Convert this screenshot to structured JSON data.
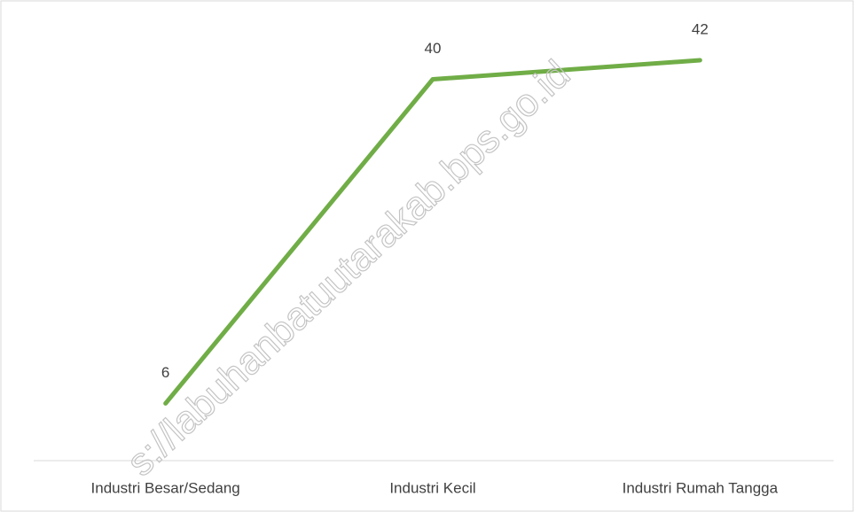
{
  "chart_data": {
    "type": "line",
    "categories": [
      "Industri Besar/Sedang",
      "Industri Kecil",
      "Industri Rumah Tangga"
    ],
    "series": [
      {
        "name": null,
        "color": "#70ad47",
        "values": [
          6,
          40,
          42
        ]
      }
    ],
    "watermark": "s://labuhanbatuutarakab.bps.go.id"
  }
}
